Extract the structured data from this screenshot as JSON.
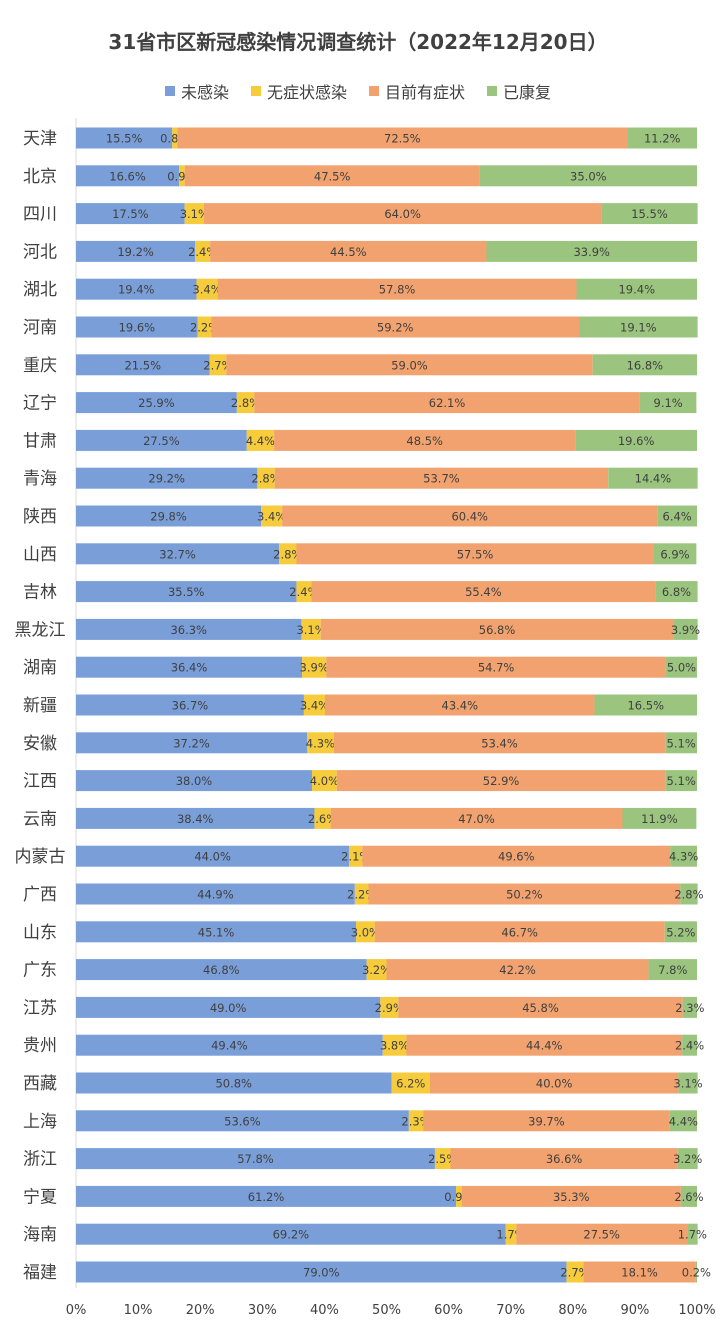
{
  "colors": {
    "uninfected": "#7a9ed8",
    "asymptomatic": "#f6cb3c",
    "symptomatic": "#f1a26e",
    "recovered": "#9bc57f",
    "axis": "#d9d9d9",
    "text": "#404040"
  },
  "chart_data": {
    "type": "bar",
    "orientation": "horizontal",
    "stacked": "percent",
    "title": "31省市区新冠感染情况调查统计（2022年12月20日）",
    "legend_position": "top",
    "xlim": [
      0,
      100
    ],
    "x_ticks": [
      "0%",
      "10%",
      "20%",
      "30%",
      "40%",
      "50%",
      "60%",
      "70%",
      "80%",
      "90%",
      "100%"
    ],
    "categories": [
      "天津",
      "北京",
      "四川",
      "河北",
      "湖北",
      "河南",
      "重庆",
      "辽宁",
      "甘肃",
      "青海",
      "陕西",
      "山西",
      "吉林",
      "黑龙江",
      "湖南",
      "新疆",
      "安徽",
      "江西",
      "云南",
      "内蒙古",
      "广西",
      "山东",
      "广东",
      "江苏",
      "贵州",
      "西藏",
      "上海",
      "浙江",
      "宁夏",
      "海南",
      "福建"
    ],
    "series": [
      {
        "name": "未感染",
        "key": "uninfected",
        "values": [
          15.5,
          16.6,
          17.5,
          19.2,
          19.4,
          19.6,
          21.5,
          25.9,
          27.5,
          29.2,
          29.8,
          32.7,
          35.5,
          36.3,
          36.4,
          36.7,
          37.2,
          38.0,
          38.4,
          44.0,
          44.9,
          45.1,
          46.8,
          49.0,
          49.4,
          50.8,
          53.6,
          57.8,
          61.2,
          69.2,
          79.0
        ]
      },
      {
        "name": "无症状感染",
        "key": "asymptomatic",
        "values": [
          0.8,
          0.9,
          3.1,
          2.4,
          3.4,
          2.2,
          2.7,
          2.8,
          4.4,
          2.8,
          3.4,
          2.8,
          2.4,
          3.1,
          3.9,
          3.4,
          4.3,
          4.0,
          2.6,
          2.1,
          2.2,
          3.0,
          3.2,
          2.9,
          3.8,
          6.2,
          2.3,
          2.5,
          0.9,
          1.7,
          2.7
        ]
      },
      {
        "name": "目前有症状",
        "key": "symptomatic",
        "values": [
          72.5,
          47.5,
          64.0,
          44.5,
          57.8,
          59.2,
          59.0,
          62.1,
          48.5,
          53.7,
          60.4,
          57.5,
          55.4,
          56.8,
          54.7,
          43.4,
          53.4,
          52.9,
          47.0,
          49.6,
          50.2,
          46.7,
          42.2,
          45.8,
          44.4,
          40.0,
          39.7,
          36.6,
          35.3,
          27.5,
          18.1
        ]
      },
      {
        "name": "已康复",
        "key": "recovered",
        "values": [
          11.2,
          35.0,
          15.5,
          33.9,
          19.4,
          19.1,
          16.8,
          9.1,
          19.6,
          14.4,
          6.4,
          6.9,
          6.8,
          3.9,
          5.0,
          16.5,
          5.1,
          5.1,
          11.9,
          4.3,
          2.8,
          5.2,
          7.8,
          2.3,
          2.4,
          3.1,
          4.4,
          3.2,
          2.6,
          1.7,
          0.2
        ]
      }
    ],
    "data_labels": [
      [
        "15.5%",
        "0.8%",
        "72.5%",
        "11.2%"
      ],
      [
        "16.6%",
        "0.9%",
        "47.5%",
        "35.0%"
      ],
      [
        "17.5%",
        "3.1%",
        "64.0%",
        "15.5%"
      ],
      [
        "19.2%",
        "2.4%",
        "44.5%",
        "33.9%"
      ],
      [
        "19.4%",
        "3.4%",
        "57.8%",
        "19.4%"
      ],
      [
        "19.6%",
        "2.2%",
        "59.2%",
        "19.1%"
      ],
      [
        "21.5%",
        "2.7%",
        "59.0%",
        "16.8%"
      ],
      [
        "25.9%",
        "2.8%",
        "62.1%",
        "9.1%"
      ],
      [
        "27.5%",
        "4.4%",
        "48.5%",
        "19.6%"
      ],
      [
        "29.2%",
        "2.8%",
        "53.7%",
        "14.4%"
      ],
      [
        "29.8%",
        "3.4%",
        "60.4%",
        "6.4%"
      ],
      [
        "32.7%",
        "2.8%",
        "57.5%",
        "6.9%"
      ],
      [
        "35.5%",
        "2.4%",
        "55.4%",
        "6.8%"
      ],
      [
        "36.3%",
        "3.1%",
        "56.8%",
        "3.9%"
      ],
      [
        "36.4%",
        "3.9%",
        "54.7%",
        "5.0%"
      ],
      [
        "36.7%",
        "3.4%",
        "43.4%",
        "16.5%"
      ],
      [
        "37.2%",
        "4.3%",
        "53.4%",
        "5.1%"
      ],
      [
        "38.0%",
        "4.0%",
        "52.9%",
        "5.1%"
      ],
      [
        "38.4%",
        "2.6%",
        "47.0%",
        "11.9%"
      ],
      [
        "44.0%",
        "2.1%",
        "49.6%",
        "4.3%"
      ],
      [
        "44.9%",
        "2.2%",
        "50.2%",
        "2.8%"
      ],
      [
        "45.1%",
        "3.0%",
        "46.7%",
        "5.2%"
      ],
      [
        "46.8%",
        "3.2%",
        "42.2%",
        "7.8%"
      ],
      [
        "49.0%",
        "2.9%",
        "45.8%",
        "2.3%"
      ],
      [
        "49.4%",
        "3.8%",
        "44.4%",
        "2.4%"
      ],
      [
        "50.8%",
        "6.2%",
        "40.0%",
        "3.1%"
      ],
      [
        "53.6%",
        "2.3%",
        "39.7%",
        "4.4%"
      ],
      [
        "57.8%",
        "2.5%",
        "36.6%",
        "3.2%"
      ],
      [
        "61.2%",
        "0.9%",
        "35.3%",
        "2.6%"
      ],
      [
        "69.2%",
        "1.7%",
        "27.5%",
        "1.7%"
      ],
      [
        "79.0%",
        "2.7%",
        "18.1%",
        "0.2%"
      ]
    ]
  }
}
